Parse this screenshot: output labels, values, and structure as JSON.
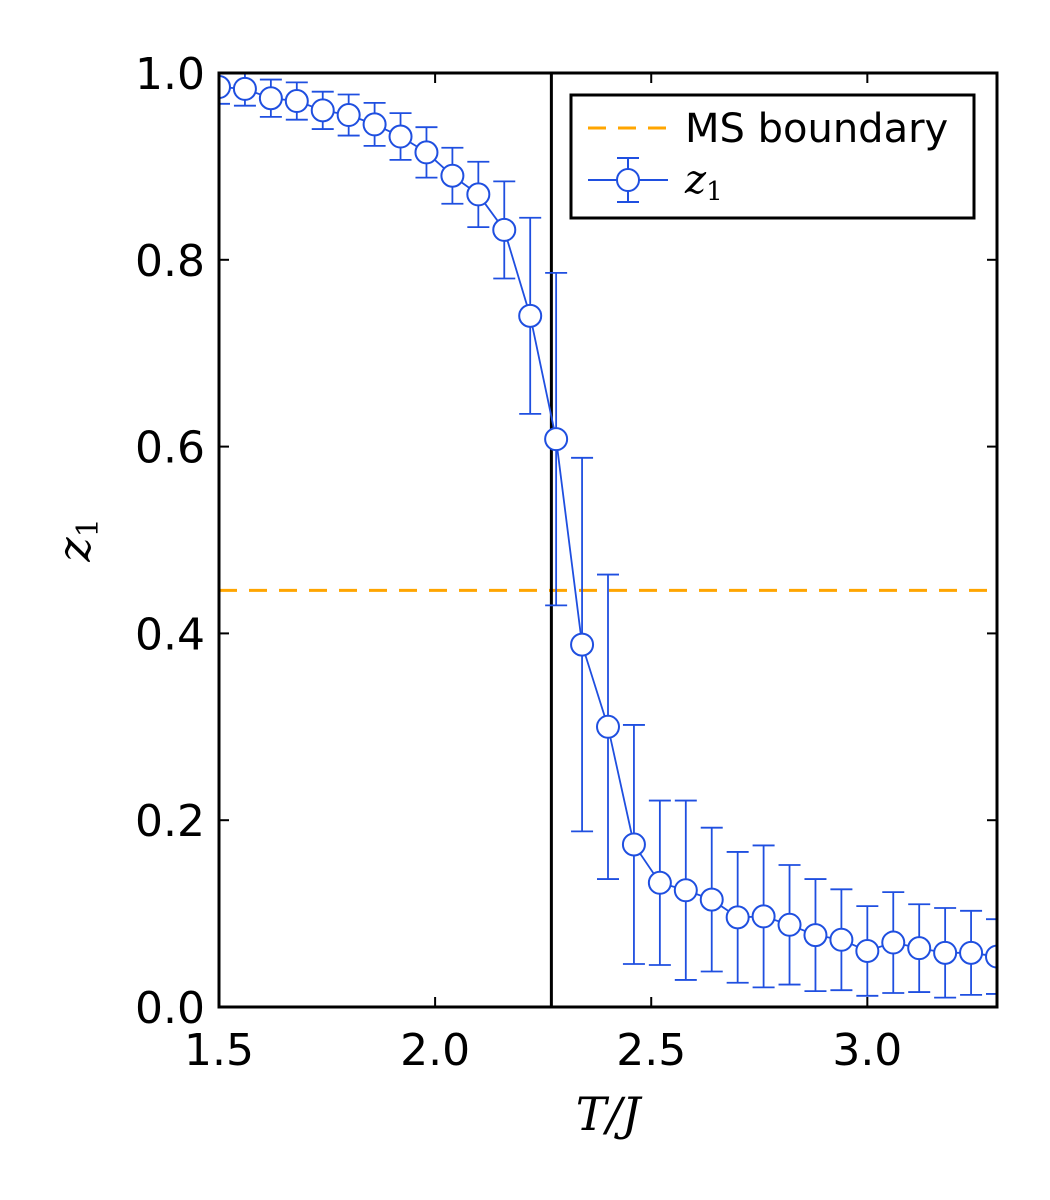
{
  "chart_data": {
    "type": "line",
    "xlabel": "T/J",
    "ylabel": "z1",
    "xlim": [
      1.5,
      3.3
    ],
    "ylim": [
      0.0,
      1.0
    ],
    "x_ticks": [
      "1.5",
      "2.0",
      "2.5",
      "3.0"
    ],
    "y_ticks": [
      "0.0",
      "0.2",
      "0.4",
      "0.6",
      "0.8",
      "1.0"
    ],
    "grid": false,
    "legend_position": "top-right",
    "legend": [
      {
        "label": "MS boundary",
        "style": "dashed-line",
        "color": "#ffa500"
      },
      {
        "label": "z1",
        "style": "circle-marker-errorbar",
        "color": "#1f4fe0"
      }
    ],
    "vertical_line": {
      "x": 2.269,
      "color": "#000000"
    },
    "horizontal_line": {
      "y": 0.446,
      "name": "MS boundary",
      "color": "#ffa500"
    },
    "series": [
      {
        "name": "z1",
        "color": "#1f4fe0",
        "x": [
          1.5,
          1.56,
          1.62,
          1.68,
          1.74,
          1.8,
          1.86,
          1.92,
          1.98,
          2.04,
          2.1,
          2.16,
          2.22,
          2.28,
          2.34,
          2.4,
          2.46,
          2.52,
          2.58,
          2.64,
          2.7,
          2.76,
          2.82,
          2.88,
          2.94,
          3.0,
          3.06,
          3.12,
          3.18,
          3.24,
          3.3
        ],
        "y": [
          0.985,
          0.983,
          0.973,
          0.97,
          0.96,
          0.955,
          0.945,
          0.932,
          0.915,
          0.89,
          0.87,
          0.832,
          0.74,
          0.608,
          0.388,
          0.3,
          0.174,
          0.133,
          0.125,
          0.115,
          0.096,
          0.097,
          0.088,
          0.077,
          0.072,
          0.06,
          0.069,
          0.063,
          0.058,
          0.058,
          0.054
        ],
        "err": [
          0.018,
          0.018,
          0.02,
          0.02,
          0.02,
          0.022,
          0.023,
          0.025,
          0.027,
          0.03,
          0.035,
          0.052,
          0.105,
          0.178,
          0.2,
          0.163,
          0.128,
          0.088,
          0.096,
          0.077,
          0.07,
          0.076,
          0.064,
          0.06,
          0.054,
          0.048,
          0.054,
          0.047,
          0.048,
          0.045,
          0.04
        ]
      }
    ]
  }
}
